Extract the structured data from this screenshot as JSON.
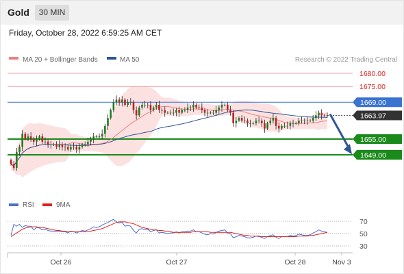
{
  "header": {
    "symbol": "Gold",
    "timeframe": "30 MIN"
  },
  "datetime": "Friday, October 28, 2022 6:59:25 AM CET",
  "legend": {
    "items": [
      {
        "label": "MA 20 + Bollinger Bands",
        "color": "#f08080"
      },
      {
        "label": "MA 50",
        "color": "#2f5597"
      }
    ],
    "research": "Research © 2022 Trading Central"
  },
  "rsi_legend": {
    "items": [
      {
        "label": "RSI",
        "color": "#4a6fd0"
      },
      {
        "label": "9MA",
        "color": "#e02020"
      }
    ]
  },
  "chart_data": [
    {
      "type": "candlestick",
      "title": "",
      "price_range": [
        1645,
        1686
      ],
      "levels": [
        {
          "value": 1680.0,
          "label": "1680.00",
          "style": "resistance",
          "color": "#f4a0a0"
        },
        {
          "value": 1675.0,
          "label": "1675.00",
          "style": "resistance",
          "color": "#f4a0a0"
        },
        {
          "value": 1669.0,
          "label": "1669.00",
          "style": "pivot",
          "color": "#3a73d0"
        },
        {
          "value": 1663.97,
          "label": "1663.97",
          "style": "last-price",
          "color": "#333333"
        },
        {
          "value": 1655.0,
          "label": "1655.00",
          "style": "support",
          "color": "#1a8a1a"
        },
        {
          "value": 1649.0,
          "label": "1649.00",
          "style": "support",
          "color": "#1a8a1a"
        }
      ],
      "projection": {
        "from": 1664.5,
        "to": 1649.5,
        "direction": "down",
        "color": "#2f5597"
      },
      "x_labels": [
        "Oct 26",
        "Oct 27",
        "Oct 28",
        "Nov 3"
      ],
      "series": [
        {
          "name": "MA 20 + Bollinger Bands",
          "color": "#f08080"
        },
        {
          "name": "MA 50",
          "color": "#2f5597"
        }
      ],
      "close": [
        1645.5,
        1644,
        1650,
        1652,
        1657,
        1655,
        1656,
        1655,
        1654,
        1655,
        1656,
        1654,
        1654,
        1653,
        1653,
        1653,
        1652,
        1653,
        1652,
        1652,
        1651,
        1652,
        1652,
        1651,
        1652,
        1653,
        1653,
        1654,
        1655,
        1656,
        1656,
        1656,
        1657,
        1660,
        1663,
        1666,
        1669,
        1670,
        1669,
        1670,
        1668,
        1669,
        1669,
        1666,
        1664,
        1667,
        1668,
        1668,
        1668,
        1666,
        1667,
        1668,
        1666,
        1666,
        1665,
        1665,
        1665,
        1665,
        1666,
        1665,
        1666,
        1666,
        1667,
        1667,
        1668,
        1667,
        1667,
        1666,
        1665,
        1665,
        1665,
        1665,
        1666,
        1667,
        1668,
        1668,
        1666,
        1665,
        1661,
        1662,
        1663,
        1662,
        1662,
        1661,
        1661,
        1661,
        1662,
        1662,
        1661,
        1659,
        1661,
        1662,
        1663,
        1660,
        1659,
        1660,
        1660,
        1660,
        1661,
        1661,
        1661,
        1662,
        1662,
        1662,
        1662,
        1662,
        1663,
        1664,
        1665,
        1664,
        1664,
        1663.97
      ]
    },
    {
      "type": "line",
      "title": "RSI",
      "y_ticks": [
        70,
        50,
        30
      ],
      "ylim": [
        25,
        80
      ],
      "series": [
        {
          "name": "RSI",
          "color": "#4a6fd0",
          "values": [
            47,
            65,
            62,
            65,
            60,
            63,
            62,
            62,
            56,
            60,
            59,
            56,
            57,
            55,
            54,
            54,
            53,
            54,
            53,
            53,
            51,
            54,
            53,
            51,
            53,
            55,
            54,
            56,
            58,
            61,
            60,
            61,
            64,
            66,
            68,
            71,
            73,
            69,
            67,
            68,
            62,
            63,
            62,
            55,
            51,
            57,
            58,
            56,
            57,
            53,
            55,
            56,
            51,
            52,
            51,
            50,
            51,
            51,
            53,
            51,
            53,
            53,
            54,
            54,
            56,
            53,
            53,
            51,
            49,
            48,
            50,
            49,
            52,
            54,
            55,
            56,
            51,
            50,
            43,
            45,
            47,
            46,
            45,
            43,
            43,
            44,
            46,
            45,
            44,
            42,
            45,
            47,
            48,
            44,
            42,
            45,
            45,
            45,
            47,
            46,
            47,
            49,
            48,
            47,
            47,
            48,
            51,
            53,
            56,
            54,
            53,
            52
          ]
        },
        {
          "name": "9MA",
          "color": "#e02020",
          "values": [
            45,
            48,
            51,
            54,
            57,
            59,
            60,
            61,
            61,
            61,
            60,
            60,
            59,
            58,
            57,
            56,
            55,
            55,
            54,
            54,
            53,
            53,
            53,
            53,
            53,
            53,
            53,
            53,
            54,
            55,
            56,
            57,
            58,
            60,
            62,
            64,
            66,
            68,
            69,
            69,
            69,
            68,
            67,
            66,
            64,
            62,
            60,
            59,
            58,
            57,
            56,
            56,
            55,
            55,
            54,
            54,
            53,
            52,
            52,
            52,
            52,
            52,
            52,
            52,
            53,
            53,
            53,
            53,
            53,
            53,
            52,
            52,
            52,
            52,
            52,
            52,
            52,
            52,
            51,
            50,
            49,
            48,
            47,
            47,
            46,
            46,
            46,
            46,
            45,
            45,
            45,
            45,
            45,
            45,
            45,
            45,
            45,
            45,
            45,
            45,
            45,
            46,
            46,
            46,
            46,
            47,
            47,
            48,
            49,
            50,
            51,
            52
          ]
        }
      ]
    }
  ]
}
